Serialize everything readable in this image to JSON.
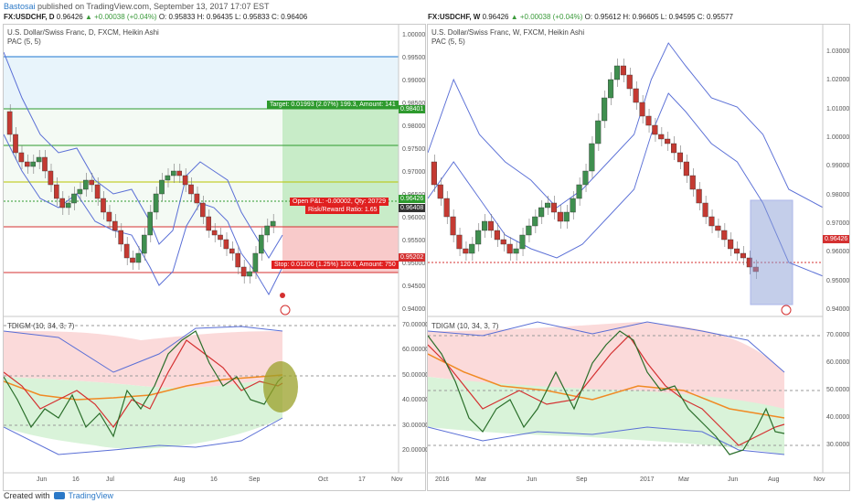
{
  "topline": {
    "author": "Bastosai",
    "text": " published on TradingView.com, September 13, 2017 17:07 EST"
  },
  "left": {
    "header": {
      "symbol": "FX:USDCHF, D",
      "o": "0.96426",
      "change": "▲ +0.00038 (+0.04%)",
      "ohlc": "O: 0.95833 H: 0.96435 L: 0.95833 C: 0.96406"
    },
    "title": "U.S. Dollar/Swiss Franc, D, FXCM, Heikin Ashi",
    "pac": "PAC (5, 5)",
    "indicator": "TDIGM (10, 34, 3, 7)",
    "price_axis": [
      "1.00000",
      "0.99500",
      "0.99000",
      "0.98500",
      "0.98000",
      "0.97500",
      "0.97000",
      "0.96500",
      "0.96000",
      "0.95500",
      "0.95000",
      "0.94500",
      "0.94000"
    ],
    "ind_axis": [
      "70.00000",
      "60.00000",
      "50.00000",
      "40.00000",
      "30.00000",
      "20.00000"
    ],
    "time_axis": [
      "Jun",
      "16",
      "Jul",
      "Aug",
      "16",
      "Sep",
      "Oct",
      "17",
      "Nov"
    ],
    "target_box": "Target: 0.01993 (2.07%) 199.3, Amount: 141",
    "open_box": "Open P&L: -0.00002, Qty: 20729",
    "risk_box": "Risk/Reward Ratio: 1.65",
    "stop_box": "Stop: 0.01206 (1.25%) 120.6, Amount: 750",
    "tag_target": "0.98401",
    "tag_price": "0.96426",
    "tag_price2": "0.96408",
    "tag_stop": "0.95202"
  },
  "right": {
    "header": {
      "symbol": "FX:USDCHF, W",
      "o": "0.96426",
      "change": "▲ +0.00038 (+0.04%)",
      "ohlc": "O: 0.95612 H: 0.96605 L: 0.94595 C: 0.95577"
    },
    "title": "U.S. Dollar/Swiss Franc, W, FXCM, Heikin Ashi",
    "pac": "PAC (5, 5)",
    "indicator": "TDIGM (10, 34, 3, 7)",
    "price_axis": [
      "1.03000",
      "1.02000",
      "1.01000",
      "1.00000",
      "0.99000",
      "0.98000",
      "0.97000",
      "0.96000",
      "0.95000",
      "0.94000"
    ],
    "ind_axis": [
      "70.0000",
      "60.0000",
      "50.0000",
      "40.0000",
      "30.0000"
    ],
    "time_axis": [
      "2016",
      "Mar",
      "Jun",
      "Sep",
      "2017",
      "Mar",
      "Jun",
      "Aug",
      "Nov"
    ],
    "tag_price": "0.96426"
  },
  "footer": {
    "created": "Created with",
    "brand": "TradingView"
  },
  "colors": {
    "green": "#2e9a2e",
    "red": "#d43030",
    "blue": "#5a6fd6",
    "tv": "#2a78c7"
  }
}
